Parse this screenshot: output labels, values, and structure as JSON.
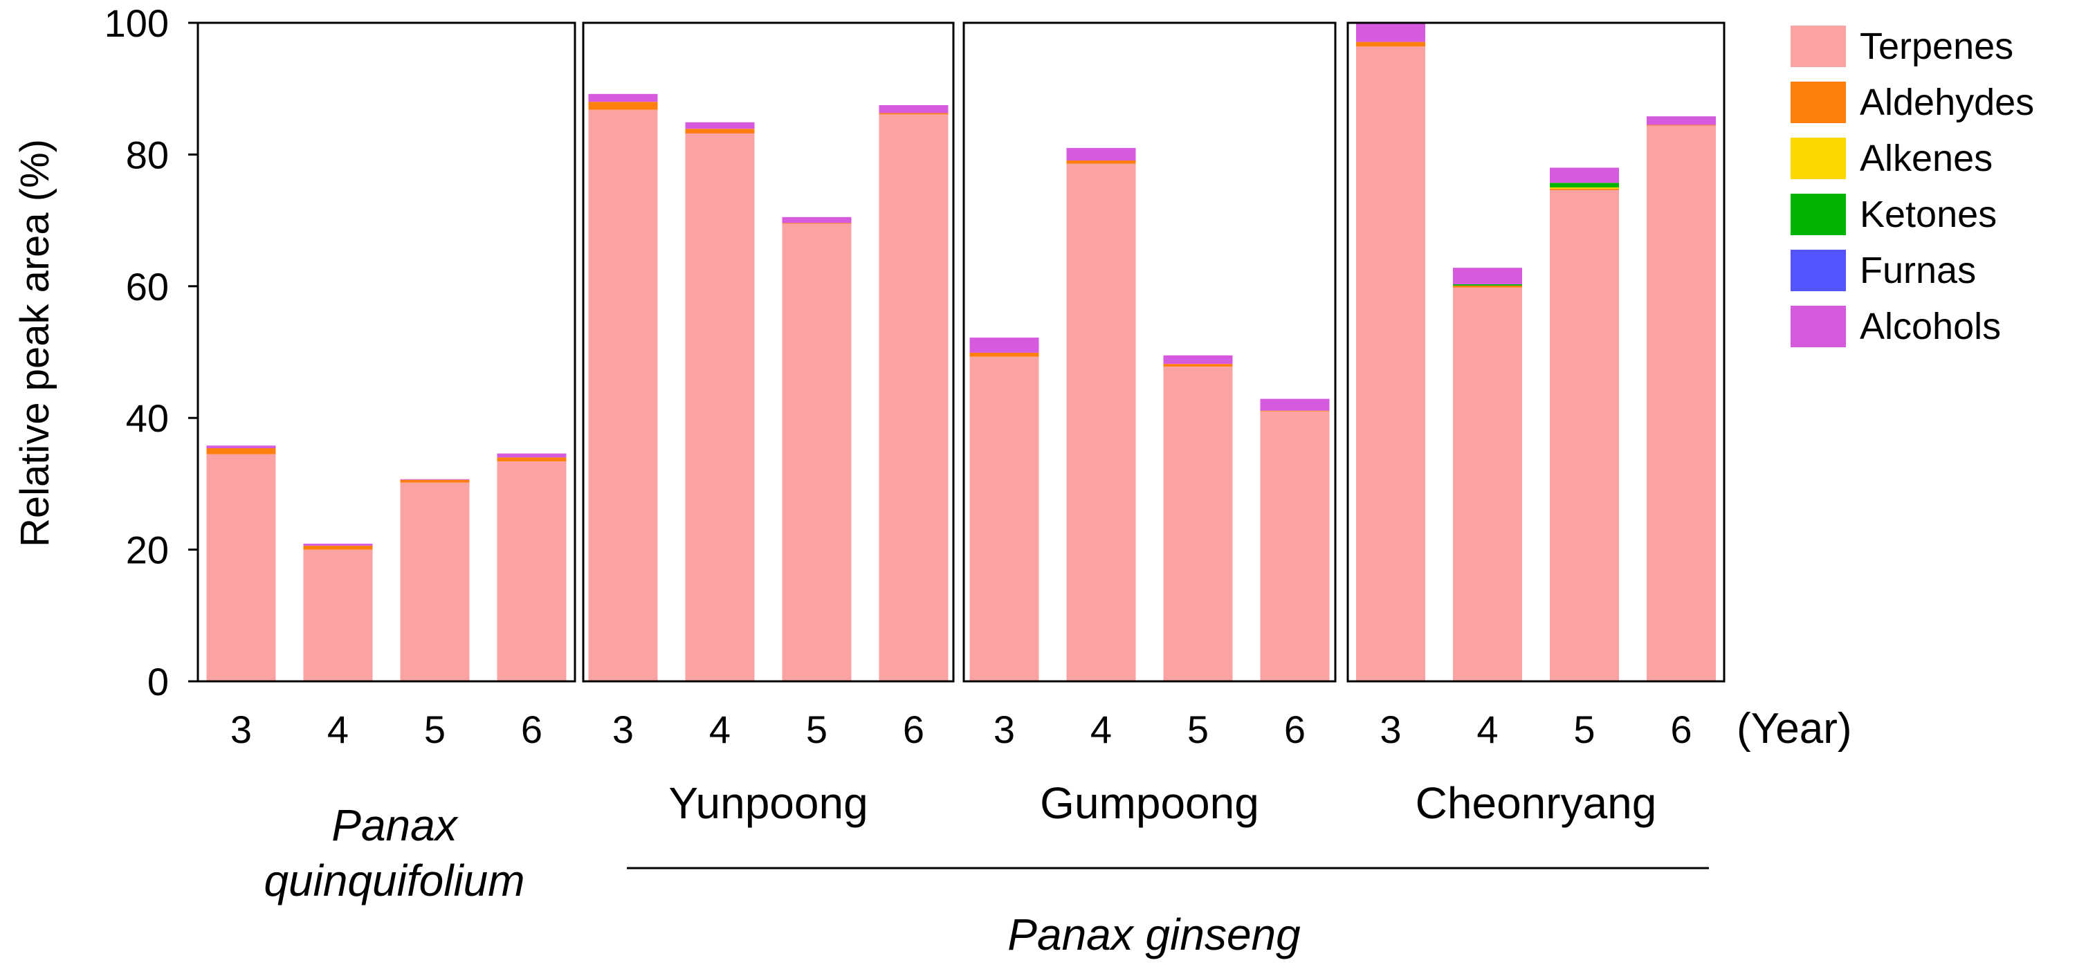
{
  "chart_data": {
    "type": "bar",
    "stacked": true,
    "ylabel": "Relative peak area (%)",
    "ylim": [
      0,
      100
    ],
    "yticks": [
      0,
      20,
      40,
      60,
      80,
      100
    ],
    "xunit": "(Year)",
    "series_names": [
      "Terpenes",
      "Aldehydes",
      "Alkenes",
      "Ketones",
      "Furnas",
      "Alcohols"
    ],
    "series_colors": [
      "#FBA3A3",
      "#FF7F0E",
      "#FFD700",
      "#00B400",
      "#5555FF",
      "#D65ADE"
    ],
    "legend_position": "right",
    "groups": [
      {
        "name": "",
        "species": "Panax quinquifolium",
        "categories": [
          "3",
          "4",
          "5",
          "6"
        ],
        "values": {
          "Terpenes": [
            34.5,
            20.0,
            30.2,
            33.4
          ],
          "Aldehydes": [
            0.9,
            0.6,
            0.4,
            0.6
          ],
          "Alkenes": [
            0.0,
            0.0,
            0.0,
            0.0
          ],
          "Ketones": [
            0.0,
            0.0,
            0.0,
            0.0
          ],
          "Furnas": [
            0.0,
            0.0,
            0.0,
            0.0
          ],
          "Alcohols": [
            0.4,
            0.3,
            0.1,
            0.6
          ]
        }
      },
      {
        "name": "Yunpoong",
        "species": "Panax ginseng",
        "categories": [
          "3",
          "4",
          "5",
          "6"
        ],
        "values": {
          "Terpenes": [
            86.8,
            83.2,
            69.5,
            86.1
          ],
          "Aldehydes": [
            1.2,
            0.7,
            0.1,
            0.2
          ],
          "Alkenes": [
            0.0,
            0.0,
            0.0,
            0.0
          ],
          "Ketones": [
            0.0,
            0.0,
            0.0,
            0.0
          ],
          "Furnas": [
            0.0,
            0.0,
            0.0,
            0.0
          ],
          "Alcohols": [
            1.2,
            1.0,
            0.9,
            1.2
          ]
        }
      },
      {
        "name": "Gumpoong",
        "species": "Panax ginseng",
        "categories": [
          "3",
          "4",
          "5",
          "6"
        ],
        "values": {
          "Terpenes": [
            49.3,
            78.6,
            47.8,
            41.0
          ],
          "Aldehydes": [
            0.6,
            0.5,
            0.4,
            0.1
          ],
          "Alkenes": [
            0.0,
            0.0,
            0.0,
            0.0
          ],
          "Ketones": [
            0.0,
            0.0,
            0.0,
            0.0
          ],
          "Furnas": [
            0.0,
            0.0,
            0.0,
            0.0
          ],
          "Alcohols": [
            2.3,
            1.9,
            1.3,
            1.8
          ]
        }
      },
      {
        "name": "Cheonryang",
        "species": "Panax ginseng",
        "categories": [
          "3",
          "4",
          "5",
          "6"
        ],
        "values": {
          "Terpenes": [
            96.4,
            59.8,
            74.6,
            84.4
          ],
          "Aldehydes": [
            0.7,
            0.3,
            0.2,
            0.1
          ],
          "Alkenes": [
            0.0,
            0.0,
            0.2,
            0.0
          ],
          "Ketones": [
            0.0,
            0.2,
            0.7,
            0.0
          ],
          "Furnas": [
            0.0,
            0.0,
            0.0,
            0.0
          ],
          "Alcohols": [
            2.9,
            2.5,
            2.3,
            1.3
          ]
        }
      }
    ]
  }
}
